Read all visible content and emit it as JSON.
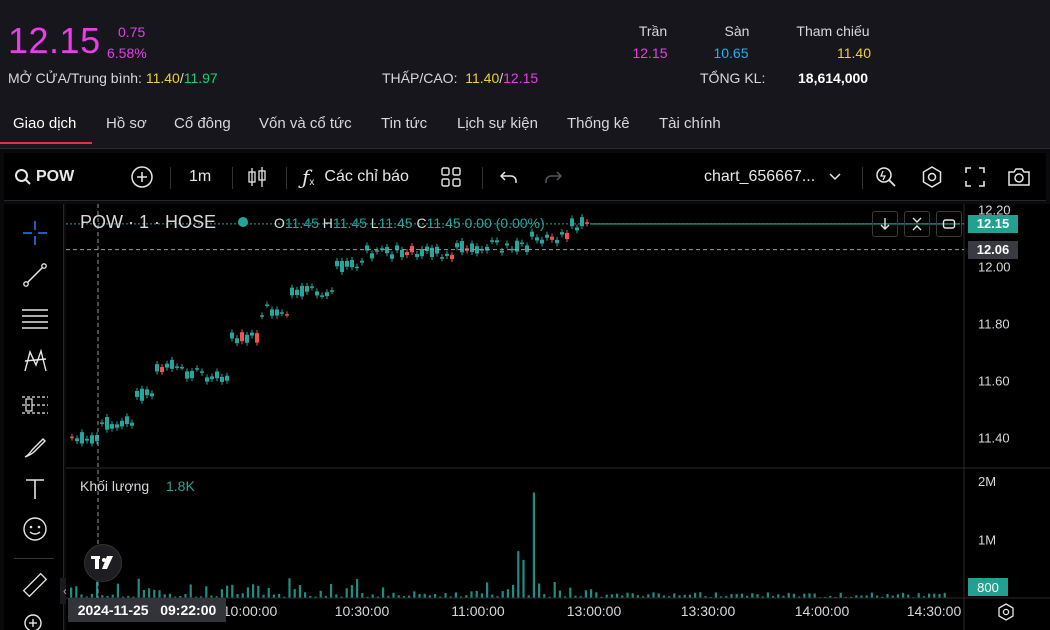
{
  "quote": {
    "price": "12.15",
    "change": "0.75",
    "change_pct": "6.58%",
    "open_avg_label": "MỞ CỬA/Trung bình:",
    "open": "11.40",
    "avg": "11.97",
    "lowhigh_label": "THẤP/CAO:",
    "low": "11.40",
    "high": "12.15",
    "ceiling_label": "Trần",
    "ceiling": "12.15",
    "floor_label": "Sàn",
    "floor": "10.65",
    "ref_label": "Tham chiếu",
    "ref": "11.40",
    "total_vol_label": "TỔNG KL:",
    "total_vol": "18,614,000",
    "slash": "/"
  },
  "tabs": [
    {
      "label": "Giao dịch",
      "active": true
    },
    {
      "label": "Hồ sơ"
    },
    {
      "label": "Cổ đông"
    },
    {
      "label": "Vốn và cổ tức"
    },
    {
      "label": "Tin tức"
    },
    {
      "label": "Lịch sự kiện"
    },
    {
      "label": "Thống kê"
    },
    {
      "label": "Tài chính"
    }
  ],
  "toolbar": {
    "symbol": "POW",
    "interval": "1m",
    "indicators_label": "Các chỉ báo",
    "layout_name": "chart_656667..."
  },
  "legend": {
    "symbol_line": "POW · 1 · HOSE",
    "o_label": "O",
    "o": "11.45",
    "h_label": "H",
    "h": "11.45",
    "l_label": "L",
    "l": "11.45",
    "c_label": "C",
    "c": "11.45",
    "change": "0.00 (0.00%)",
    "volume_label": "Khối lượng",
    "volume_value": "1.8K"
  },
  "colors": {
    "up": "#26a69a",
    "down": "#ef5350",
    "magenta": "#e83ee8",
    "yellow": "#ecd23a",
    "green": "#1fd16e",
    "cyan": "#1fb2e8"
  },
  "chart_data": {
    "type": "candlestick",
    "price_axis_ticks": [
      "12.20",
      "12.00",
      "11.80",
      "11.60",
      "11.40"
    ],
    "price_tick_values": [
      12.2,
      12.0,
      11.8,
      11.6,
      11.4
    ],
    "ylim": [
      11.3,
      12.22
    ],
    "last_price_label": "12.15",
    "last_price": 12.15,
    "crosshair_price_label": "12.06",
    "crosshair_price": 12.06,
    "volume_axis_ticks": [
      "2M",
      "1M"
    ],
    "volume_tick_values": [
      2000000,
      1000000
    ],
    "volume_last_label": "800",
    "time_axis_ticks": [
      "10:00:00",
      "10:30:00",
      "11:00:00",
      "13:00:00",
      "13:30:00",
      "14:00:00",
      "14:30:00"
    ],
    "crosshair_time_label": "2024-11-25   09:22:00",
    "price_steps": [
      {
        "from": 0.0,
        "to": 0.05,
        "price": 11.4
      },
      {
        "from": 0.05,
        "to": 0.12,
        "price": 11.45
      },
      {
        "from": 0.12,
        "to": 0.16,
        "price": 11.55
      },
      {
        "from": 0.16,
        "to": 0.22,
        "price": 11.65
      },
      {
        "from": 0.22,
        "to": 0.3,
        "price": 11.62
      },
      {
        "from": 0.3,
        "to": 0.36,
        "price": 11.75
      },
      {
        "from": 0.36,
        "to": 0.42,
        "price": 11.85
      },
      {
        "from": 0.42,
        "to": 0.5,
        "price": 11.92
      },
      {
        "from": 0.5,
        "to": 0.56,
        "price": 12.0
      },
      {
        "from": 0.56,
        "to": 0.62,
        "price": 12.05
      },
      {
        "from": 0.62,
        "to": 0.74,
        "price": 12.05
      },
      {
        "from": 0.74,
        "to": 0.88,
        "price": 12.07
      },
      {
        "from": 0.88,
        "to": 0.96,
        "price": 12.1
      },
      {
        "from": 0.96,
        "to": 1.0,
        "price": 12.15
      }
    ],
    "volume_spikes": [
      {
        "t": 0.95,
        "volume": 1800000
      },
      {
        "t": 0.92,
        "volume": 800000
      },
      {
        "t": 0.93,
        "volume": 650000
      }
    ]
  }
}
